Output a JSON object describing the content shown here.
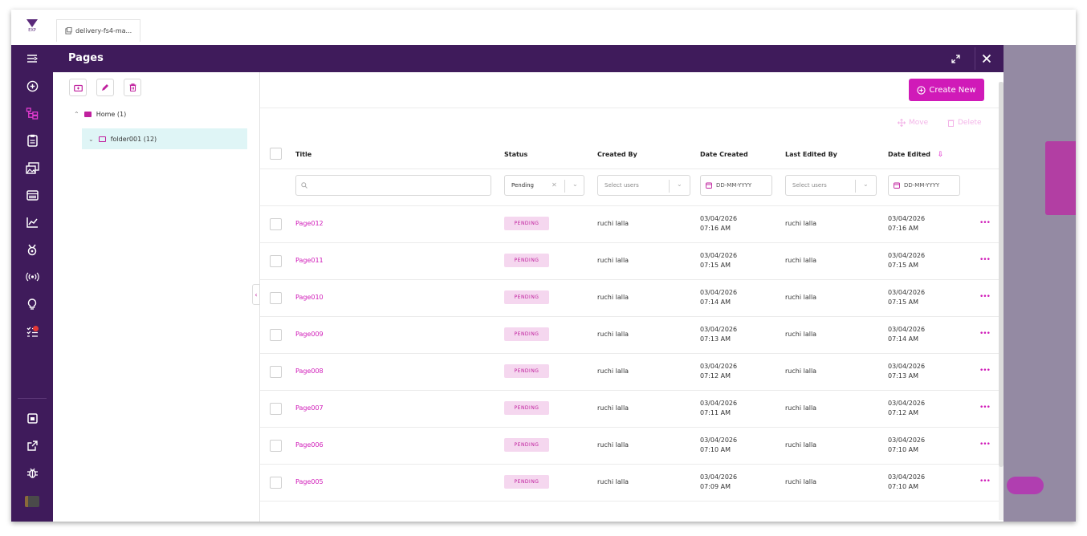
{
  "tab": {
    "file_name": "delivery-fs4-ma..."
  },
  "logo": {
    "text": "EXP"
  },
  "header": {
    "title": "Pages"
  },
  "folder_panel": {
    "home_label": "Home (1)",
    "folder_label": "folder001 (12)"
  },
  "toolbar": {
    "create_label": "Create New",
    "move_label": "Move",
    "delete_label": "Delete"
  },
  "columns": {
    "title": "Title",
    "status": "Status",
    "created_by": "Created By",
    "date_created": "Date Created",
    "last_edited_by": "Last Edited By",
    "date_edited": "Date Edited"
  },
  "filters": {
    "status_value": "Pending",
    "created_by_placeholder": "Select users",
    "date_created_placeholder": "DD-MM-YYYY",
    "last_edited_placeholder": "Select users",
    "date_edited_placeholder": "DD-MM-YYYY"
  },
  "rows": [
    {
      "title": "Page012",
      "status": "PENDING",
      "created_by": "ruchi lalla",
      "created_date": "03/04/2026",
      "created_time": "07:16 AM",
      "edited_by": "ruchi lalla",
      "edited_date": "03/04/2026",
      "edited_time": "07:16 AM"
    },
    {
      "title": "Page011",
      "status": "PENDING",
      "created_by": "ruchi lalla",
      "created_date": "03/04/2026",
      "created_time": "07:15 AM",
      "edited_by": "ruchi lalla",
      "edited_date": "03/04/2026",
      "edited_time": "07:15 AM"
    },
    {
      "title": "Page010",
      "status": "PENDING",
      "created_by": "ruchi lalla",
      "created_date": "03/04/2026",
      "created_time": "07:14 AM",
      "edited_by": "ruchi lalla",
      "edited_date": "03/04/2026",
      "edited_time": "07:15 AM"
    },
    {
      "title": "Page009",
      "status": "PENDING",
      "created_by": "ruchi lalla",
      "created_date": "03/04/2026",
      "created_time": "07:13 AM",
      "edited_by": "ruchi lalla",
      "edited_date": "03/04/2026",
      "edited_time": "07:14 AM"
    },
    {
      "title": "Page008",
      "status": "PENDING",
      "created_by": "ruchi lalla",
      "created_date": "03/04/2026",
      "created_time": "07:12 AM",
      "edited_by": "ruchi lalla",
      "edited_date": "03/04/2026",
      "edited_time": "07:13 AM"
    },
    {
      "title": "Page007",
      "status": "PENDING",
      "created_by": "ruchi lalla",
      "created_date": "03/04/2026",
      "created_time": "07:11 AM",
      "edited_by": "ruchi lalla",
      "edited_date": "03/04/2026",
      "edited_time": "07:12 AM"
    },
    {
      "title": "Page006",
      "status": "PENDING",
      "created_by": "ruchi lalla",
      "created_date": "03/04/2026",
      "created_time": "07:10 AM",
      "edited_by": "ruchi lalla",
      "edited_date": "03/04/2026",
      "edited_time": "07:10 AM"
    },
    {
      "title": "Page005",
      "status": "PENDING",
      "created_by": "ruchi lalla",
      "created_date": "03/04/2026",
      "created_time": "07:09 AM",
      "edited_by": "ruchi lalla",
      "edited_date": "03/04/2026",
      "edited_time": "07:10 AM"
    }
  ],
  "colors": {
    "rail": "#3f1b5b",
    "accent": "#d01ab8",
    "badge_bg": "#f5d7ef",
    "selected_folder": "#dff5f6"
  },
  "icons": {
    "rail": [
      "menu-icon",
      "add-circle-icon",
      "tree-icon",
      "clipboard-icon",
      "images-icon",
      "browser-icon",
      "chart-icon",
      "badge-icon",
      "broadcast-icon",
      "lightbulb-icon",
      "tasks-icon",
      "calendar-icon",
      "external-link-icon",
      "bug-icon"
    ],
    "sort": "sort-down-icon"
  }
}
